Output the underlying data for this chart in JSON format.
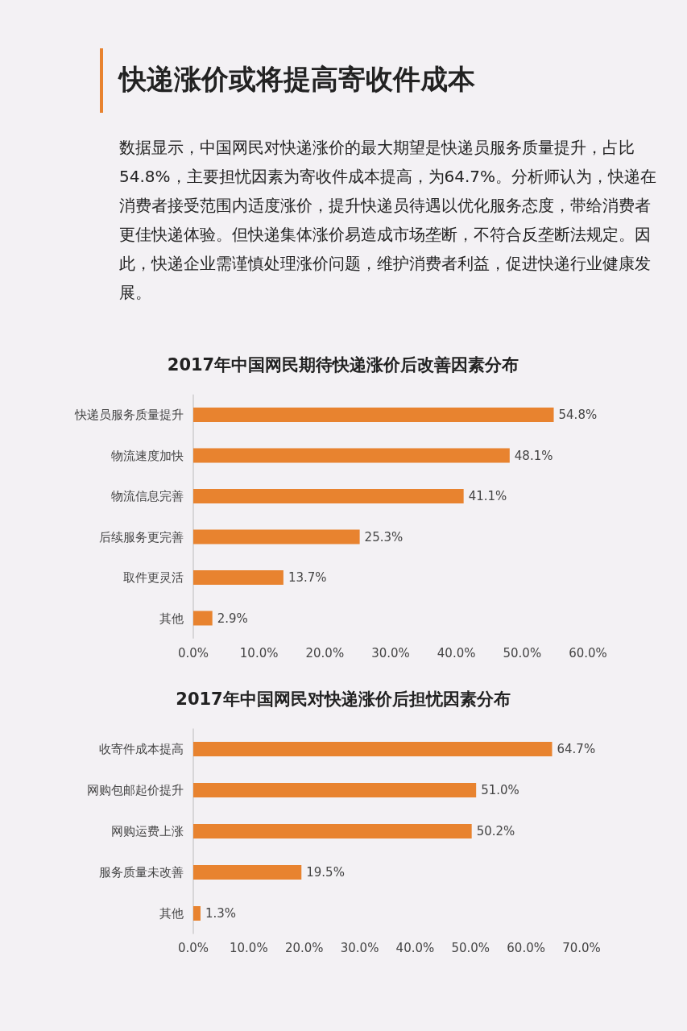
{
  "chart_data": [
    {
      "type": "other",
      "title": "快递涨价或将提高寄收件成本",
      "annotations": [
        "数据显示，中国网民对快递涨价的最大期望是快递员服务质量提升，占比54.8%，主要担忧因素为寄收件成本提高，为64.7%。分析师认为，快递在消费者接受范围内适度涨价，提升快递员待遇以优化服务态度，带给消费者更佳快递体验。但快递集体涨价易造成市场垄断，不符合反垄断法规定。因此，快递企业需谨慎处理涨价问题，维护消费者利益，促进快递行业健康发展。"
      ]
    },
    {
      "type": "bar",
      "orientation": "horizontal",
      "title": "2017年中国网民期待快递涨价后改善因素分布",
      "categories": [
        "快递员服务质量提升",
        "物流速度加快",
        "物流信息完善",
        "后续服务更完善",
        "取件更灵活",
        "其他"
      ],
      "values": [
        54.8,
        48.1,
        41.1,
        25.3,
        13.7,
        2.9
      ],
      "value_labels": [
        "54.8%",
        "48.1%",
        "41.1%",
        "25.3%",
        "13.7%",
        "2.9%"
      ],
      "color": "#e8832f",
      "xlim": [
        0,
        60
      ],
      "xticks": [
        {
          "value": 0,
          "label": "0.0%"
        },
        {
          "value": 10,
          "label": "10.0%"
        },
        {
          "value": 20,
          "label": "20.0%"
        },
        {
          "value": 30,
          "label": "30.0%"
        },
        {
          "value": 40,
          "label": "40.0%"
        },
        {
          "value": 50,
          "label": "50.0%"
        },
        {
          "value": 60,
          "label": "60.0%"
        }
      ]
    },
    {
      "type": "bar",
      "orientation": "horizontal",
      "title": "2017年中国网民对快递涨价后担忧因素分布",
      "categories": [
        "收寄件成本提高",
        "网购包邮起价提升",
        "网购运费上涨",
        "服务质量未改善",
        "其他"
      ],
      "values": [
        64.7,
        51.0,
        50.2,
        19.5,
        1.3
      ],
      "value_labels": [
        "64.7%",
        "51.0%",
        "50.2%",
        "19.5%",
        "1.3%"
      ],
      "color": "#e8832f",
      "xlim": [
        0,
        70
      ],
      "xticks": [
        {
          "value": 0,
          "label": "0.0%"
        },
        {
          "value": 10,
          "label": "10.0%"
        },
        {
          "value": 20,
          "label": "20.0%"
        },
        {
          "value": 30,
          "label": "30.0%"
        },
        {
          "value": 40,
          "label": "40.0%"
        },
        {
          "value": 50,
          "label": "50.0%"
        },
        {
          "value": 60,
          "label": "60.0%"
        },
        {
          "value": 70,
          "label": "70.0%"
        }
      ]
    }
  ]
}
